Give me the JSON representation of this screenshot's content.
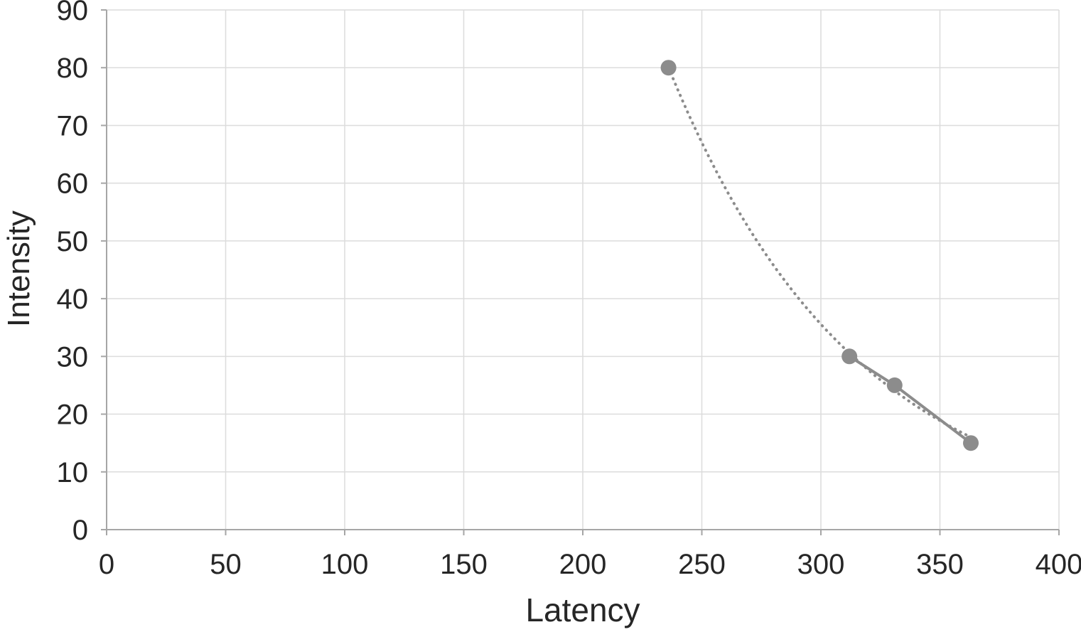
{
  "chart_data": {
    "type": "scatter",
    "title": "",
    "xlabel": "Latency",
    "ylabel": "Intensity",
    "xlim": [
      0,
      400
    ],
    "ylim": [
      0,
      90
    ],
    "x_ticks": [
      0,
      50,
      100,
      150,
      200,
      250,
      300,
      350,
      400
    ],
    "y_ticks": [
      0,
      10,
      20,
      30,
      40,
      50,
      60,
      70,
      80,
      90
    ],
    "grid": true,
    "legend": "none",
    "series": [
      {
        "name": "exponential-trendline",
        "style": "dotted-curve",
        "color": "#8c8c8c",
        "width": 4,
        "trend": {
          "form": "exponential",
          "a": 1592,
          "b": -0.01267,
          "x_min": 236,
          "x_max": 364
        }
      },
      {
        "name": "connector-line",
        "style": "solid-line",
        "color": "#8c8c8c",
        "width": 4,
        "points": [
          [
            312,
            30
          ],
          [
            331,
            25
          ],
          [
            363,
            15
          ]
        ]
      },
      {
        "name": "observations",
        "style": "markers",
        "color": "#8c8c8c",
        "marker_radius": 11,
        "points": [
          [
            236,
            80
          ],
          [
            312,
            30
          ],
          [
            331,
            25
          ],
          [
            363,
            15
          ]
        ]
      }
    ],
    "colors": {
      "grid": "#dcdcdc",
      "axis": "#a6a6a6",
      "text": "#262626",
      "background": "#ffffff"
    }
  }
}
